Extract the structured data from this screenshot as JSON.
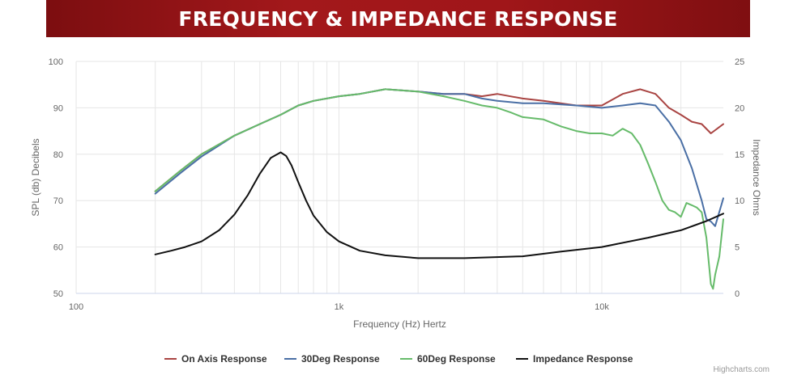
{
  "header": {
    "title": "FREQUENCY & IMPEDANCE RESPONSE"
  },
  "credit": "Highcharts.com",
  "chart_data": {
    "type": "line",
    "xlabel": "Frequency (Hz) Hertz",
    "ylabel": "SPL (db) Decibels",
    "y2label": "Impedance Ohms",
    "x_scale": "log",
    "xlim": [
      100,
      29000
    ],
    "ylim": [
      50,
      100
    ],
    "y2lim": [
      0,
      25
    ],
    "x_ticks": [
      {
        "value": 100,
        "label": "100"
      },
      {
        "value": 1000,
        "label": "1k"
      },
      {
        "value": 10000,
        "label": "10k"
      }
    ],
    "y_ticks": [
      50,
      60,
      70,
      80,
      90,
      100
    ],
    "y2_ticks": [
      0,
      5,
      10,
      15,
      20,
      25
    ],
    "grid": true,
    "legend_position": "bottom",
    "series": [
      {
        "name": "On Axis Response",
        "color": "#a94442",
        "axis": "left",
        "x": [
          200,
          250,
          300,
          400,
          500,
          600,
          700,
          800,
          1000,
          1200,
          1500,
          2000,
          2500,
          3000,
          3500,
          4000,
          5000,
          6000,
          8000,
          10000,
          12000,
          14000,
          16000,
          18000,
          20000,
          22000,
          24000,
          26000,
          29000
        ],
        "y": [
          72,
          76.5,
          80,
          84,
          86.5,
          88.5,
          90.5,
          91.5,
          92.5,
          93,
          94,
          93.5,
          93,
          93,
          92.5,
          93,
          92,
          91.5,
          90.5,
          90.5,
          93,
          94,
          93,
          90,
          88.5,
          87,
          86.5,
          84.5,
          86.5
        ]
      },
      {
        "name": "30Deg Response",
        "color": "#4a6fa5",
        "axis": "left",
        "x": [
          200,
          250,
          300,
          400,
          500,
          600,
          700,
          800,
          1000,
          1200,
          1500,
          2000,
          2500,
          3000,
          3500,
          4000,
          5000,
          6000,
          8000,
          10000,
          12000,
          14000,
          16000,
          18000,
          20000,
          22000,
          24000,
          25000,
          26000,
          27000,
          29000
        ],
        "y": [
          71.5,
          76,
          79.5,
          84,
          86.5,
          88.5,
          90.5,
          91.5,
          92.5,
          93,
          94,
          93.5,
          93,
          93,
          92,
          91.5,
          91,
          91,
          90.5,
          90,
          90.5,
          91,
          90.5,
          87,
          83,
          77,
          70,
          66,
          65.5,
          64.5,
          70.5
        ]
      },
      {
        "name": "60Deg Response",
        "color": "#66bb6a",
        "axis": "left",
        "x": [
          200,
          250,
          300,
          400,
          500,
          600,
          700,
          800,
          1000,
          1200,
          1500,
          2000,
          2500,
          3000,
          3500,
          4000,
          4500,
          5000,
          6000,
          7000,
          8000,
          9000,
          10000,
          11000,
          12000,
          13000,
          14000,
          15000,
          16000,
          17000,
          18000,
          19000,
          20000,
          21000,
          22000,
          23000,
          24000,
          25000,
          26000,
          26500,
          27000,
          28000,
          29000
        ],
        "y": [
          72,
          76.5,
          80,
          84,
          86.5,
          88.5,
          90.5,
          91.5,
          92.5,
          93,
          94,
          93.5,
          92.5,
          91.5,
          90.5,
          90,
          89,
          88,
          87.5,
          86,
          85,
          84.5,
          84.5,
          84,
          85.5,
          84.5,
          82,
          78,
          74,
          70,
          68,
          67.5,
          66.5,
          69.5,
          69,
          68.5,
          67.5,
          62,
          52,
          51,
          54,
          58,
          66
        ]
      },
      {
        "name": "Impedance Response",
        "color": "#111111",
        "axis": "right",
        "x": [
          200,
          230,
          260,
          300,
          350,
          400,
          450,
          500,
          550,
          600,
          630,
          660,
          700,
          750,
          800,
          900,
          1000,
          1200,
          1500,
          2000,
          3000,
          5000,
          7000,
          10000,
          15000,
          20000,
          25000,
          29000
        ],
        "y": [
          4.2,
          4.6,
          5.0,
          5.6,
          6.8,
          8.5,
          10.6,
          12.9,
          14.6,
          15.2,
          14.8,
          13.8,
          12.0,
          10.0,
          8.4,
          6.6,
          5.6,
          4.6,
          4.1,
          3.8,
          3.8,
          4.0,
          4.5,
          5.0,
          6.0,
          6.8,
          7.8,
          8.6
        ]
      }
    ]
  }
}
